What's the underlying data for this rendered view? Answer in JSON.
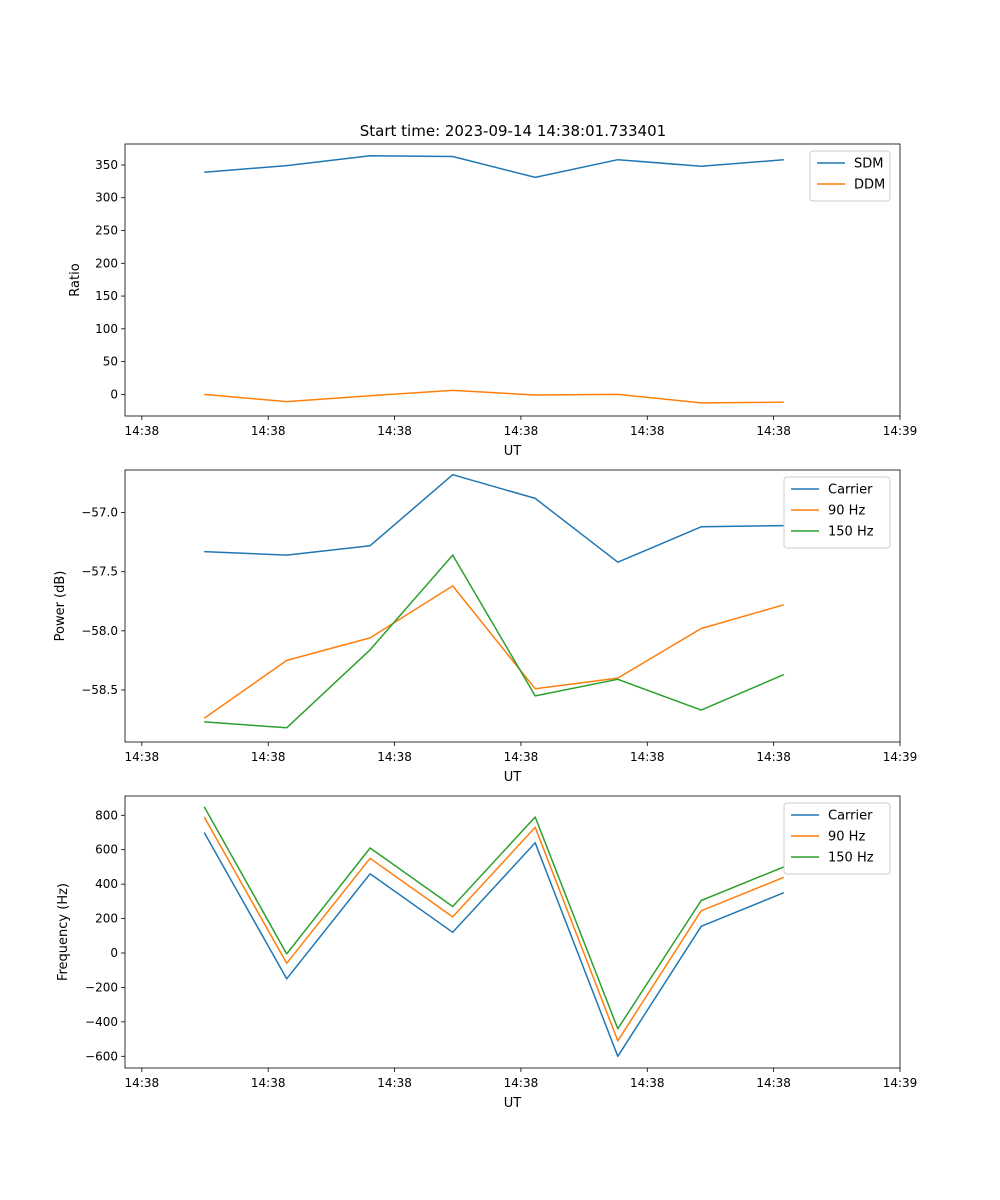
{
  "figure": {
    "title": "Start time: 2023-09-14 14:38:01.733401"
  },
  "colors": {
    "blue": "#1f77b4",
    "orange": "#ff7f0e",
    "green": "#2ca02c"
  },
  "chart_data": [
    {
      "type": "line",
      "ylabel": "Ratio",
      "xlabel": "UT",
      "xlim": [
        -0.2,
        9.0
      ],
      "ylim": [
        -33,
        382
      ],
      "xtick_positions": [
        0,
        1.5,
        3,
        4.5,
        6,
        7.5,
        9
      ],
      "xtick_labels": [
        "14:38",
        "14:38",
        "14:38",
        "14:38",
        "14:38",
        "14:38",
        "14:39"
      ],
      "ytick_values": [
        0,
        50,
        100,
        150,
        200,
        250,
        300,
        350
      ],
      "ytick_labels": [
        "0",
        "50",
        "100",
        "150",
        "200",
        "250",
        "300",
        "350"
      ],
      "legend_position": "upper-right",
      "x": [
        0.74,
        1.72,
        2.71,
        3.69,
        4.67,
        5.65,
        6.64,
        7.62
      ],
      "series": [
        {
          "name": "SDM",
          "color": "blue",
          "values": [
            339,
            349,
            364,
            363,
            331,
            358,
            348,
            358
          ]
        },
        {
          "name": "DDM",
          "color": "orange",
          "values": [
            0,
            -11,
            -2,
            6,
            -1,
            0,
            -13,
            -12
          ]
        }
      ]
    },
    {
      "type": "line",
      "ylabel": "Power (dB)",
      "xlabel": "UT",
      "xlim": [
        -0.2,
        9.0
      ],
      "ylim": [
        -58.94,
        -56.64
      ],
      "xtick_positions": [
        0,
        1.5,
        3,
        4.5,
        6,
        7.5,
        9
      ],
      "xtick_labels": [
        "14:38",
        "14:38",
        "14:38",
        "14:38",
        "14:38",
        "14:38",
        "14:39"
      ],
      "ytick_values": [
        -58.5,
        -58.0,
        -57.5,
        -57.0
      ],
      "ytick_labels": [
        "−58.5",
        "−58.0",
        "−57.5",
        "−57.0"
      ],
      "legend_position": "upper-right",
      "x": [
        0.74,
        1.72,
        2.71,
        3.69,
        4.67,
        5.65,
        6.64,
        7.62
      ],
      "series": [
        {
          "name": "Carrier",
          "color": "blue",
          "values": [
            -57.33,
            -57.36,
            -57.28,
            -56.68,
            -56.88,
            -57.42,
            -57.12,
            -57.11
          ]
        },
        {
          "name": "90 Hz",
          "color": "orange",
          "values": [
            -58.74,
            -58.25,
            -58.06,
            -57.62,
            -58.49,
            -58.4,
            -57.98,
            -57.78
          ]
        },
        {
          "name": "150 Hz",
          "color": "green",
          "values": [
            -58.77,
            -58.82,
            -58.16,
            -57.36,
            -58.55,
            -58.41,
            -58.67,
            -58.37
          ]
        }
      ]
    },
    {
      "type": "line",
      "ylabel": "Frequency (Hz)",
      "xlabel": "UT",
      "xlim": [
        -0.2,
        9.0
      ],
      "ylim": [
        -668,
        912
      ],
      "xtick_positions": [
        0,
        1.5,
        3,
        4.5,
        6,
        7.5,
        9
      ],
      "xtick_labels": [
        "14:38",
        "14:38",
        "14:38",
        "14:38",
        "14:38",
        "14:38",
        "14:39"
      ],
      "ytick_values": [
        -600,
        -400,
        -200,
        0,
        200,
        400,
        600,
        800
      ],
      "ytick_labels": [
        "−600",
        "−400",
        "−200",
        "0",
        "200",
        "400",
        "600",
        "800"
      ],
      "legend_position": "upper-right",
      "x": [
        0.74,
        1.72,
        2.71,
        3.69,
        4.67,
        5.65,
        6.64,
        7.62
      ],
      "series": [
        {
          "name": "Carrier",
          "color": "blue",
          "values": [
            700,
            -150,
            460,
            120,
            640,
            -600,
            155,
            350
          ]
        },
        {
          "name": "90 Hz",
          "color": "orange",
          "values": [
            790,
            -60,
            550,
            210,
            730,
            -510,
            245,
            440
          ]
        },
        {
          "name": "150 Hz",
          "color": "green",
          "values": [
            850,
            -5,
            610,
            270,
            790,
            -440,
            305,
            500
          ]
        }
      ]
    }
  ]
}
